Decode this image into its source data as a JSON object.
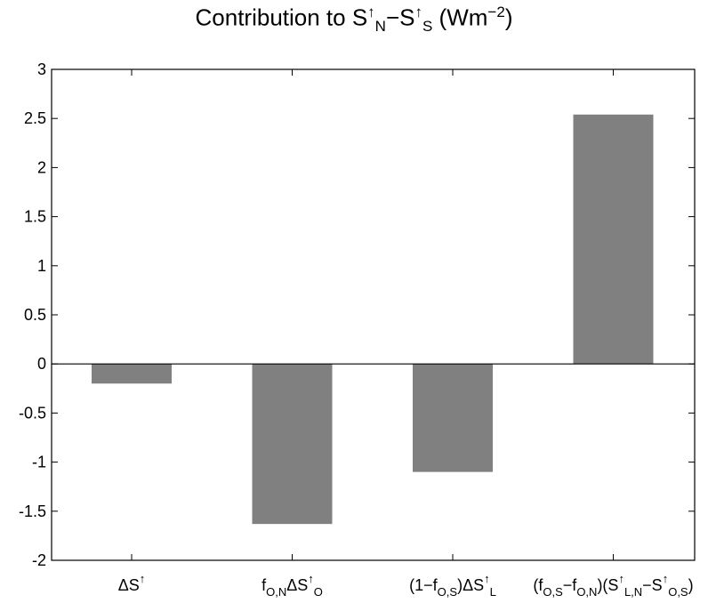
{
  "chart_data": {
    "type": "bar",
    "title": {
      "prefix": "Contribution to S",
      "sup1": "↑",
      "sub1": "N",
      "minus": "−S",
      "sup2": "↑",
      "sub2": "S",
      "unit_open": " (Wm",
      "unit_exp": "−2",
      "unit_close": ")"
    },
    "categories": [
      [
        {
          "t": "ΔS"
        },
        {
          "t": "↑",
          "s": "sup"
        }
      ],
      [
        {
          "t": "f"
        },
        {
          "t": "O,N",
          "s": "sub"
        },
        {
          "t": "ΔS"
        },
        {
          "t": "↑",
          "s": "sup"
        },
        {
          "t": "O",
          "s": "sub"
        }
      ],
      [
        {
          "t": "(1−f"
        },
        {
          "t": "O,S",
          "s": "sub"
        },
        {
          "t": ")ΔS"
        },
        {
          "t": "↑",
          "s": "sup"
        },
        {
          "t": "L",
          "s": "sub"
        }
      ],
      [
        {
          "t": "(f"
        },
        {
          "t": "O,S",
          "s": "sub"
        },
        {
          "t": "−f"
        },
        {
          "t": "O,N",
          "s": "sub"
        },
        {
          "t": ")(S"
        },
        {
          "t": "↑",
          "s": "sup"
        },
        {
          "t": "L,N",
          "s": "sub"
        },
        {
          "t": "−S"
        },
        {
          "t": "↑",
          "s": "sup"
        },
        {
          "t": "O,S",
          "s": "sub"
        },
        {
          "t": ")"
        }
      ]
    ],
    "values": [
      -0.2,
      -1.63,
      -1.1,
      2.54
    ],
    "ylim": [
      -2,
      3
    ],
    "yticks": [
      "3",
      "2.5",
      "2",
      "1.5",
      "1",
      "0.5",
      "0",
      "-0.5",
      "-1",
      "-1.5",
      "-2"
    ],
    "ytick_values": [
      3,
      2.5,
      2,
      1.5,
      1,
      0.5,
      0,
      -0.5,
      -1,
      -1.5,
      -2
    ],
    "bar_color": "#808080",
    "grid": false,
    "xlabel": "",
    "ylabel": ""
  }
}
